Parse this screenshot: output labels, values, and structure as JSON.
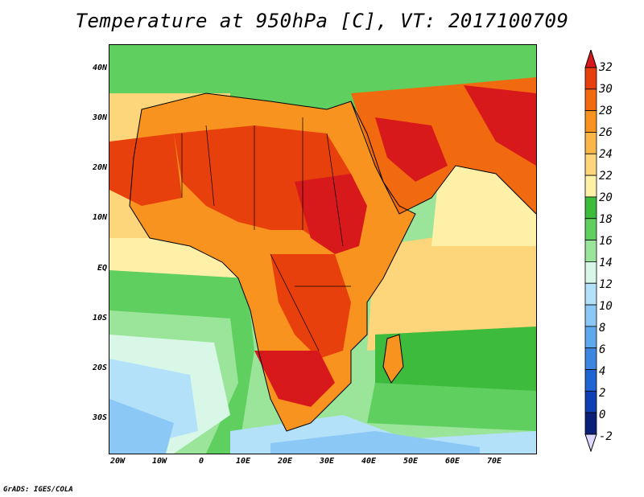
{
  "title": "Temperature at 950hPa [C], VT: 2017100709",
  "footer": "GrADS: IGES/COLA",
  "axes": {
    "y_labels": [
      "40N",
      "30N",
      "20N",
      "10N",
      "EQ",
      "10S",
      "20S",
      "30S"
    ],
    "x_labels": [
      "20W",
      "10W",
      "0",
      "10E",
      "20E",
      "30E",
      "40E",
      "50E",
      "60E",
      "70E"
    ]
  },
  "colorbar": {
    "labels": [
      "32",
      "30",
      "28",
      "26",
      "24",
      "22",
      "20",
      "18",
      "16",
      "14",
      "12",
      "10",
      "8",
      "6",
      "4",
      "2",
      "0",
      "-2"
    ],
    "colors": [
      "#d7191c",
      "#e8400c",
      "#f26a0f",
      "#f7931e",
      "#fab648",
      "#fdd67c",
      "#fef0a6",
      "#3dbb3d",
      "#5fd05f",
      "#9ae59a",
      "#d8f7e6",
      "#b3e1fa",
      "#8cc8f5",
      "#5fa8ee",
      "#3d86e0",
      "#1e64d2",
      "#0f3fb4",
      "#0a1f78",
      "#ddd8ff"
    ]
  }
}
